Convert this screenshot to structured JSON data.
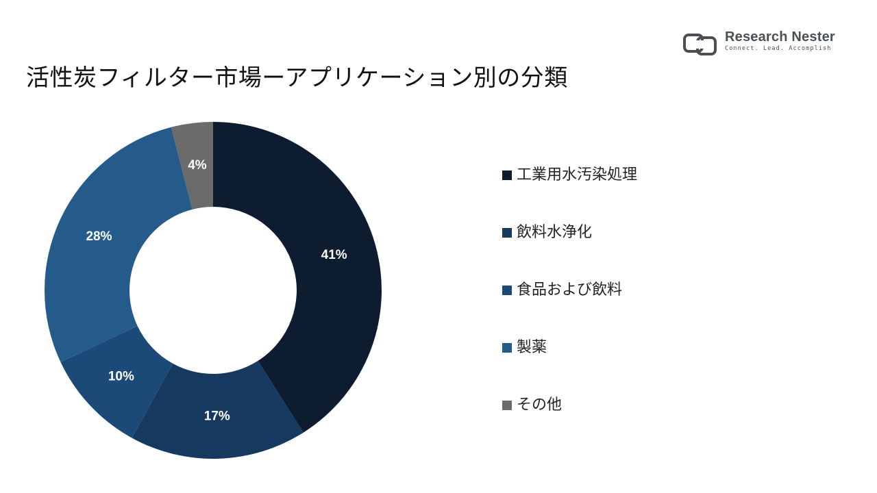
{
  "logo": {
    "name": "Research Nester",
    "tagline": "Connect. Lead. Accomplish"
  },
  "chart_data": {
    "type": "pie",
    "title": "活性炭フィルター市場ーアプリケーション別の分類",
    "donut": true,
    "legend_position": "right",
    "categories": [
      "工業用水汚染処理",
      "飲料水浄化",
      "食品および飲料",
      "製薬",
      "その他"
    ],
    "values": [
      41,
      17,
      10,
      28,
      4
    ],
    "labels": [
      "41%",
      "17%",
      "10%",
      "28%",
      "4%"
    ],
    "colors": [
      "#0d1c2e",
      "#163a5f",
      "#1c4a78",
      "#255b8b",
      "#6b6b6b"
    ]
  }
}
